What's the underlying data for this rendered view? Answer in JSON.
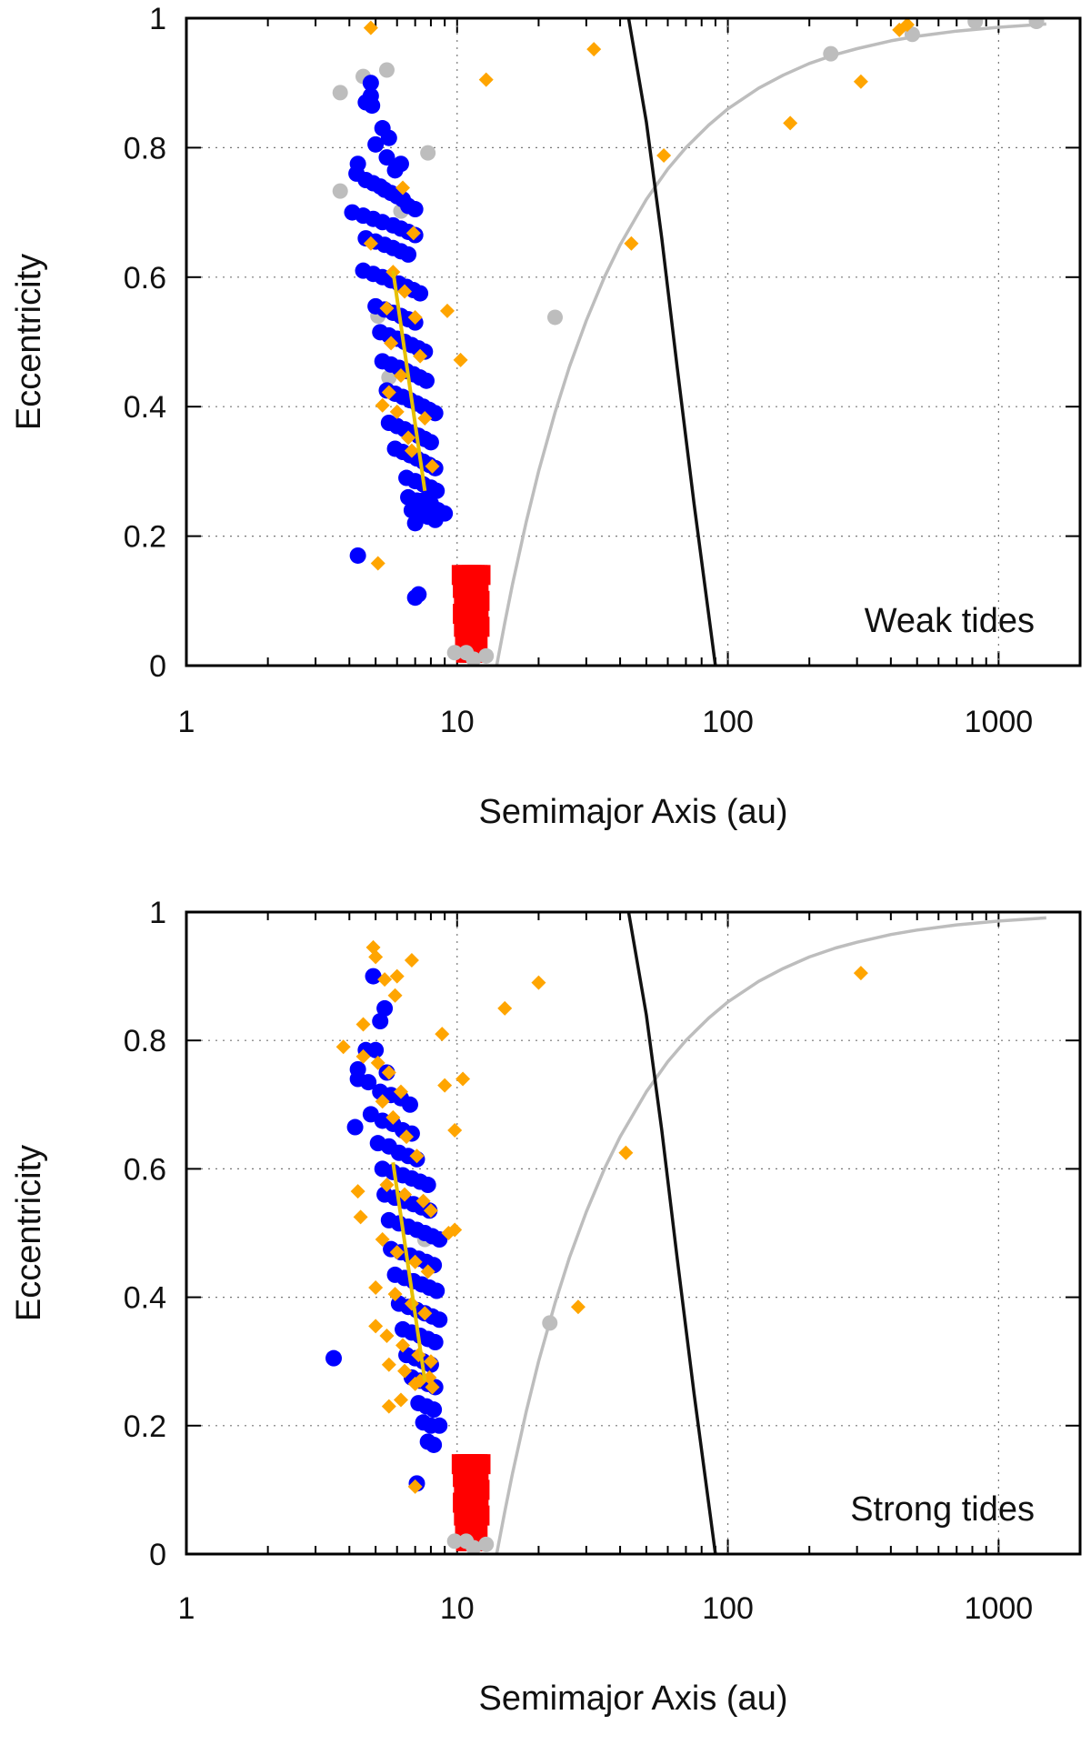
{
  "colors": {
    "bound": "#111111",
    "analytic": "#bdbdbd",
    "blue_points": "#0000ff",
    "orange_points": "#ffa500",
    "gray_points": "#bdbdbd",
    "red_points": "#ff0000",
    "fit_line": "#e6c000",
    "grid": "#777777"
  },
  "chart_data": [
    {
      "type": "scatter",
      "title": "",
      "panel_label": "Weak tides",
      "xlabel": "Semimajor Axis (au)",
      "ylabel": "Eccentricity",
      "xscale": "log",
      "xlim": [
        1,
        2000
      ],
      "ylim": [
        0,
        1
      ],
      "xticks": [
        1,
        10,
        100,
        1000
      ],
      "xtick_labels": [
        "1",
        "10",
        "100",
        "1000"
      ],
      "yticks": [
        0,
        0.2,
        0.4,
        0.6,
        0.8,
        1
      ],
      "ytick_labels": [
        "0",
        "0.2",
        "0.4",
        "0.6",
        "0.8",
        "1"
      ],
      "grid": true,
      "series": [
        {
          "name": "black boundary curve",
          "kind": "line",
          "x": [
            43,
            50,
            57,
            65,
            75,
            90
          ],
          "y": [
            1.0,
            0.84,
            0.66,
            0.46,
            0.25,
            0.0
          ]
        },
        {
          "name": "gray analytic curve",
          "kind": "line",
          "x": [
            14,
            15,
            16,
            18,
            20,
            23,
            26,
            30,
            35,
            40,
            50,
            60,
            70,
            85,
            100,
            130,
            160,
            200,
            250,
            300,
            400,
            500,
            700,
            1000,
            1500
          ],
          "y": [
            0.0,
            0.066,
            0.125,
            0.222,
            0.3,
            0.391,
            0.462,
            0.533,
            0.6,
            0.65,
            0.72,
            0.767,
            0.8,
            0.835,
            0.86,
            0.892,
            0.912,
            0.93,
            0.944,
            0.953,
            0.965,
            0.972,
            0.98,
            0.986,
            0.991
          ]
        },
        {
          "name": "yellow fit line",
          "kind": "line",
          "x": [
            5.8,
            7.6
          ],
          "y": [
            0.61,
            0.27
          ]
        },
        {
          "name": "gray points",
          "kind": "point",
          "x": [
            3.7,
            3.7,
            4.5,
            5.5,
            7.8,
            6.2,
            5.1,
            5.6,
            9.8,
            10.8,
            11.5,
            12.8,
            23,
            240,
            480,
            820,
            1380
          ],
          "y": [
            0.885,
            0.733,
            0.91,
            0.92,
            0.792,
            0.702,
            0.54,
            0.445,
            0.02,
            0.02,
            0.01,
            0.015,
            0.538,
            0.945,
            0.975,
            0.995,
            0.995
          ]
        },
        {
          "name": "blue points",
          "kind": "point",
          "x": [
            4.8,
            4.8,
            4.6,
            4.85,
            5.3,
            5.6,
            5.0,
            5.5,
            6.2,
            5.9,
            4.3,
            4.25,
            4.6,
            4.9,
            5.2,
            5.4,
            5.7,
            6.0,
            6.3,
            6.6,
            7.0,
            4.1,
            4.5,
            4.9,
            5.3,
            5.8,
            6.2,
            6.6,
            7.0,
            4.6,
            5.0,
            5.4,
            5.8,
            6.2,
            6.6,
            4.5,
            4.9,
            5.3,
            5.7,
            6.1,
            6.5,
            6.9,
            7.3,
            5.0,
            5.4,
            5.8,
            6.2,
            6.6,
            7.0,
            5.2,
            5.6,
            6.0,
            6.4,
            6.8,
            7.2,
            7.6,
            5.3,
            5.7,
            6.1,
            6.5,
            6.9,
            7.3,
            7.7,
            5.5,
            5.9,
            6.3,
            6.7,
            7.1,
            7.5,
            7.9,
            8.3,
            5.6,
            6.0,
            6.4,
            6.8,
            7.2,
            7.6,
            8.0,
            5.9,
            6.3,
            6.7,
            7.1,
            7.5,
            7.9,
            8.3,
            6.5,
            7.0,
            7.5,
            8.0,
            8.4,
            6.6,
            7.1,
            7.6,
            8.1,
            6.8,
            7.3,
            7.8,
            8.3,
            7.0,
            7.5,
            8.0,
            8.5,
            9.0,
            4.3,
            7.0,
            7.2
          ],
          "y": [
            0.9,
            0.88,
            0.87,
            0.865,
            0.83,
            0.815,
            0.805,
            0.785,
            0.775,
            0.765,
            0.775,
            0.76,
            0.75,
            0.745,
            0.74,
            0.735,
            0.73,
            0.725,
            0.72,
            0.71,
            0.705,
            0.7,
            0.695,
            0.69,
            0.685,
            0.68,
            0.675,
            0.67,
            0.665,
            0.66,
            0.655,
            0.65,
            0.645,
            0.64,
            0.635,
            0.61,
            0.605,
            0.6,
            0.595,
            0.59,
            0.585,
            0.58,
            0.575,
            0.555,
            0.55,
            0.545,
            0.54,
            0.535,
            0.53,
            0.515,
            0.51,
            0.505,
            0.5,
            0.495,
            0.49,
            0.485,
            0.47,
            0.465,
            0.46,
            0.455,
            0.45,
            0.445,
            0.44,
            0.425,
            0.42,
            0.415,
            0.41,
            0.405,
            0.4,
            0.395,
            0.39,
            0.375,
            0.37,
            0.365,
            0.36,
            0.355,
            0.35,
            0.345,
            0.335,
            0.33,
            0.325,
            0.32,
            0.315,
            0.31,
            0.305,
            0.29,
            0.285,
            0.28,
            0.275,
            0.27,
            0.26,
            0.255,
            0.25,
            0.245,
            0.24,
            0.235,
            0.23,
            0.225,
            0.22,
            0.255,
            0.25,
            0.24,
            0.235,
            0.17,
            0.105,
            0.11
          ]
        },
        {
          "name": "orange points",
          "kind": "point",
          "x": [
            4.8,
            12.8,
            32,
            44,
            58,
            170,
            310,
            430,
            460,
            6.3,
            6.9,
            5.8,
            4.8,
            5.5,
            6.4,
            7.0,
            5.7,
            6.2,
            7.3,
            9.2,
            10.3,
            5.3,
            6.0,
            6.6,
            7.6,
            5.6,
            6.8,
            8.1,
            5.1
          ],
          "y": [
            0.985,
            0.905,
            0.952,
            0.652,
            0.788,
            0.838,
            0.902,
            0.982,
            0.99,
            0.738,
            0.668,
            0.608,
            0.652,
            0.552,
            0.578,
            0.538,
            0.498,
            0.448,
            0.478,
            0.548,
            0.472,
            0.402,
            0.392,
            0.352,
            0.382,
            0.422,
            0.332,
            0.308,
            0.158
          ]
        },
        {
          "name": "red points",
          "kind": "point",
          "x": [
            10.4,
            10.7,
            11.0,
            11.3,
            11.6,
            11.9,
            12.2,
            10.5,
            10.8,
            11.1,
            11.4,
            11.7,
            12.0,
            10.6,
            10.9,
            11.2,
            11.5,
            11.8,
            12.1,
            10.5,
            10.8,
            11.1,
            11.4,
            11.7,
            12.0,
            10.6,
            10.9,
            11.2,
            11.5,
            11.8,
            12.1,
            10.7,
            11.0,
            11.3,
            11.6,
            11.9,
            10.8,
            11.1,
            11.4,
            11.7
          ],
          "y": [
            0.14,
            0.14,
            0.14,
            0.14,
            0.14,
            0.14,
            0.14,
            0.12,
            0.12,
            0.12,
            0.12,
            0.12,
            0.12,
            0.1,
            0.1,
            0.1,
            0.1,
            0.1,
            0.1,
            0.08,
            0.08,
            0.08,
            0.08,
            0.08,
            0.08,
            0.06,
            0.06,
            0.06,
            0.06,
            0.06,
            0.06,
            0.04,
            0.04,
            0.04,
            0.04,
            0.04,
            0.02,
            0.02,
            0.02,
            0.02
          ]
        }
      ]
    },
    {
      "type": "scatter",
      "title": "",
      "panel_label": "Strong tides",
      "xlabel": "Semimajor Axis (au)",
      "ylabel": "Eccentricity",
      "xscale": "log",
      "xlim": [
        1,
        2000
      ],
      "ylim": [
        0,
        1
      ],
      "xticks": [
        1,
        10,
        100,
        1000
      ],
      "xtick_labels": [
        "1",
        "10",
        "100",
        "1000"
      ],
      "yticks": [
        0,
        0.2,
        0.4,
        0.6,
        0.8,
        1
      ],
      "ytick_labels": [
        "0",
        "0.2",
        "0.4",
        "0.6",
        "0.8",
        "1"
      ],
      "grid": true,
      "series": [
        {
          "name": "black boundary curve",
          "kind": "line",
          "x": [
            43,
            50,
            57,
            65,
            75,
            90
          ],
          "y": [
            1.0,
            0.84,
            0.66,
            0.46,
            0.25,
            0.0
          ]
        },
        {
          "name": "gray analytic curve",
          "kind": "line",
          "x": [
            14,
            15,
            16,
            18,
            20,
            23,
            26,
            30,
            35,
            40,
            50,
            60,
            70,
            85,
            100,
            130,
            160,
            200,
            250,
            300,
            400,
            500,
            700,
            1000,
            1500
          ],
          "y": [
            0.0,
            0.066,
            0.125,
            0.222,
            0.3,
            0.391,
            0.462,
            0.533,
            0.6,
            0.65,
            0.72,
            0.767,
            0.8,
            0.835,
            0.86,
            0.892,
            0.912,
            0.93,
            0.944,
            0.953,
            0.965,
            0.972,
            0.98,
            0.986,
            0.991
          ]
        },
        {
          "name": "yellow fit line",
          "kind": "line",
          "x": [
            5.8,
            7.6
          ],
          "y": [
            0.61,
            0.27
          ]
        },
        {
          "name": "gray points",
          "kind": "point",
          "x": [
            9.8,
            10.8,
            11.5,
            12.8,
            22,
            7.6
          ],
          "y": [
            0.02,
            0.02,
            0.01,
            0.015,
            0.36,
            0.49
          ]
        },
        {
          "name": "blue points",
          "kind": "point",
          "x": [
            4.9,
            5.4,
            5.2,
            5.0,
            4.6,
            4.3,
            5.5,
            4.3,
            4.7,
            5.2,
            5.7,
            6.2,
            6.7,
            4.8,
            5.3,
            5.8,
            6.3,
            6.8,
            5.1,
            5.6,
            6.1,
            6.6,
            7.1,
            5.3,
            5.8,
            6.3,
            6.8,
            7.3,
            7.8,
            5.4,
            5.9,
            6.4,
            6.9,
            7.4,
            7.9,
            5.6,
            6.1,
            6.6,
            7.1,
            7.6,
            8.1,
            8.6,
            5.7,
            6.2,
            6.7,
            7.2,
            7.7,
            8.2,
            5.9,
            6.4,
            6.9,
            7.4,
            7.9,
            8.4,
            6.1,
            6.6,
            7.1,
            7.6,
            8.1,
            8.6,
            6.3,
            6.8,
            7.3,
            7.8,
            8.3,
            6.5,
            7.0,
            7.5,
            8.0,
            6.8,
            7.3,
            7.8,
            8.3,
            7.2,
            7.7,
            8.2,
            7.5,
            8.0,
            8.6,
            7.8,
            8.2,
            4.2,
            3.5,
            7.1
          ],
          "y": [
            0.9,
            0.85,
            0.83,
            0.785,
            0.785,
            0.755,
            0.75,
            0.74,
            0.735,
            0.72,
            0.715,
            0.71,
            0.7,
            0.685,
            0.675,
            0.67,
            0.66,
            0.655,
            0.64,
            0.635,
            0.625,
            0.62,
            0.615,
            0.6,
            0.595,
            0.59,
            0.585,
            0.58,
            0.575,
            0.56,
            0.555,
            0.55,
            0.545,
            0.54,
            0.535,
            0.52,
            0.515,
            0.51,
            0.505,
            0.5,
            0.495,
            0.49,
            0.475,
            0.47,
            0.465,
            0.46,
            0.455,
            0.45,
            0.435,
            0.43,
            0.425,
            0.42,
            0.415,
            0.41,
            0.39,
            0.385,
            0.38,
            0.375,
            0.37,
            0.365,
            0.35,
            0.345,
            0.34,
            0.335,
            0.33,
            0.31,
            0.305,
            0.3,
            0.295,
            0.275,
            0.27,
            0.265,
            0.26,
            0.235,
            0.23,
            0.225,
            0.205,
            0.2,
            0.2,
            0.175,
            0.17,
            0.665,
            0.305,
            0.11
          ]
        },
        {
          "name": "orange points",
          "kind": "point",
          "x": [
            4.9,
            5.0,
            5.4,
            6.8,
            6.0,
            5.9,
            4.5,
            3.8,
            8.8,
            9.0,
            10.5,
            9.8,
            15,
            20,
            42,
            310,
            28,
            4.5,
            5.1,
            5.6,
            6.2,
            5.3,
            5.8,
            6.5,
            7.1,
            4.3,
            4.4,
            5.5,
            6.4,
            7.5,
            8.0,
            9.3,
            9.8,
            5.3,
            6.0,
            7.0,
            7.8,
            5.0,
            5.9,
            6.8,
            7.6,
            5.5,
            6.3,
            7.2,
            8.0,
            5.0,
            5.6,
            6.4,
            7.3,
            8.1,
            5.6,
            6.2,
            7.0,
            7.9,
            7.0
          ],
          "y": [
            0.945,
            0.93,
            0.895,
            0.925,
            0.9,
            0.87,
            0.825,
            0.79,
            0.81,
            0.73,
            0.74,
            0.66,
            0.85,
            0.89,
            0.625,
            0.905,
            0.385,
            0.775,
            0.765,
            0.75,
            0.72,
            0.705,
            0.68,
            0.65,
            0.62,
            0.565,
            0.525,
            0.575,
            0.56,
            0.55,
            0.535,
            0.5,
            0.505,
            0.49,
            0.47,
            0.455,
            0.44,
            0.415,
            0.405,
            0.39,
            0.375,
            0.34,
            0.325,
            0.31,
            0.3,
            0.355,
            0.295,
            0.285,
            0.27,
            0.26,
            0.23,
            0.24,
            0.265,
            0.275,
            0.105
          ]
        },
        {
          "name": "red points",
          "kind": "point",
          "x": [
            10.4,
            10.7,
            11.0,
            11.3,
            11.6,
            11.9,
            12.2,
            10.5,
            10.8,
            11.1,
            11.4,
            11.7,
            12.0,
            10.6,
            10.9,
            11.2,
            11.5,
            11.8,
            12.1,
            10.5,
            10.8,
            11.1,
            11.4,
            11.7,
            12.0,
            10.6,
            10.9,
            11.2,
            11.5,
            11.8,
            12.1,
            10.7,
            11.0,
            11.3,
            11.6,
            11.9,
            10.8,
            11.1,
            11.4,
            11.7
          ],
          "y": [
            0.14,
            0.14,
            0.14,
            0.14,
            0.14,
            0.14,
            0.14,
            0.12,
            0.12,
            0.12,
            0.12,
            0.12,
            0.12,
            0.1,
            0.1,
            0.1,
            0.1,
            0.1,
            0.1,
            0.08,
            0.08,
            0.08,
            0.08,
            0.08,
            0.08,
            0.06,
            0.06,
            0.06,
            0.06,
            0.06,
            0.06,
            0.04,
            0.04,
            0.04,
            0.04,
            0.04,
            0.02,
            0.02,
            0.02,
            0.02
          ]
        }
      ]
    }
  ]
}
